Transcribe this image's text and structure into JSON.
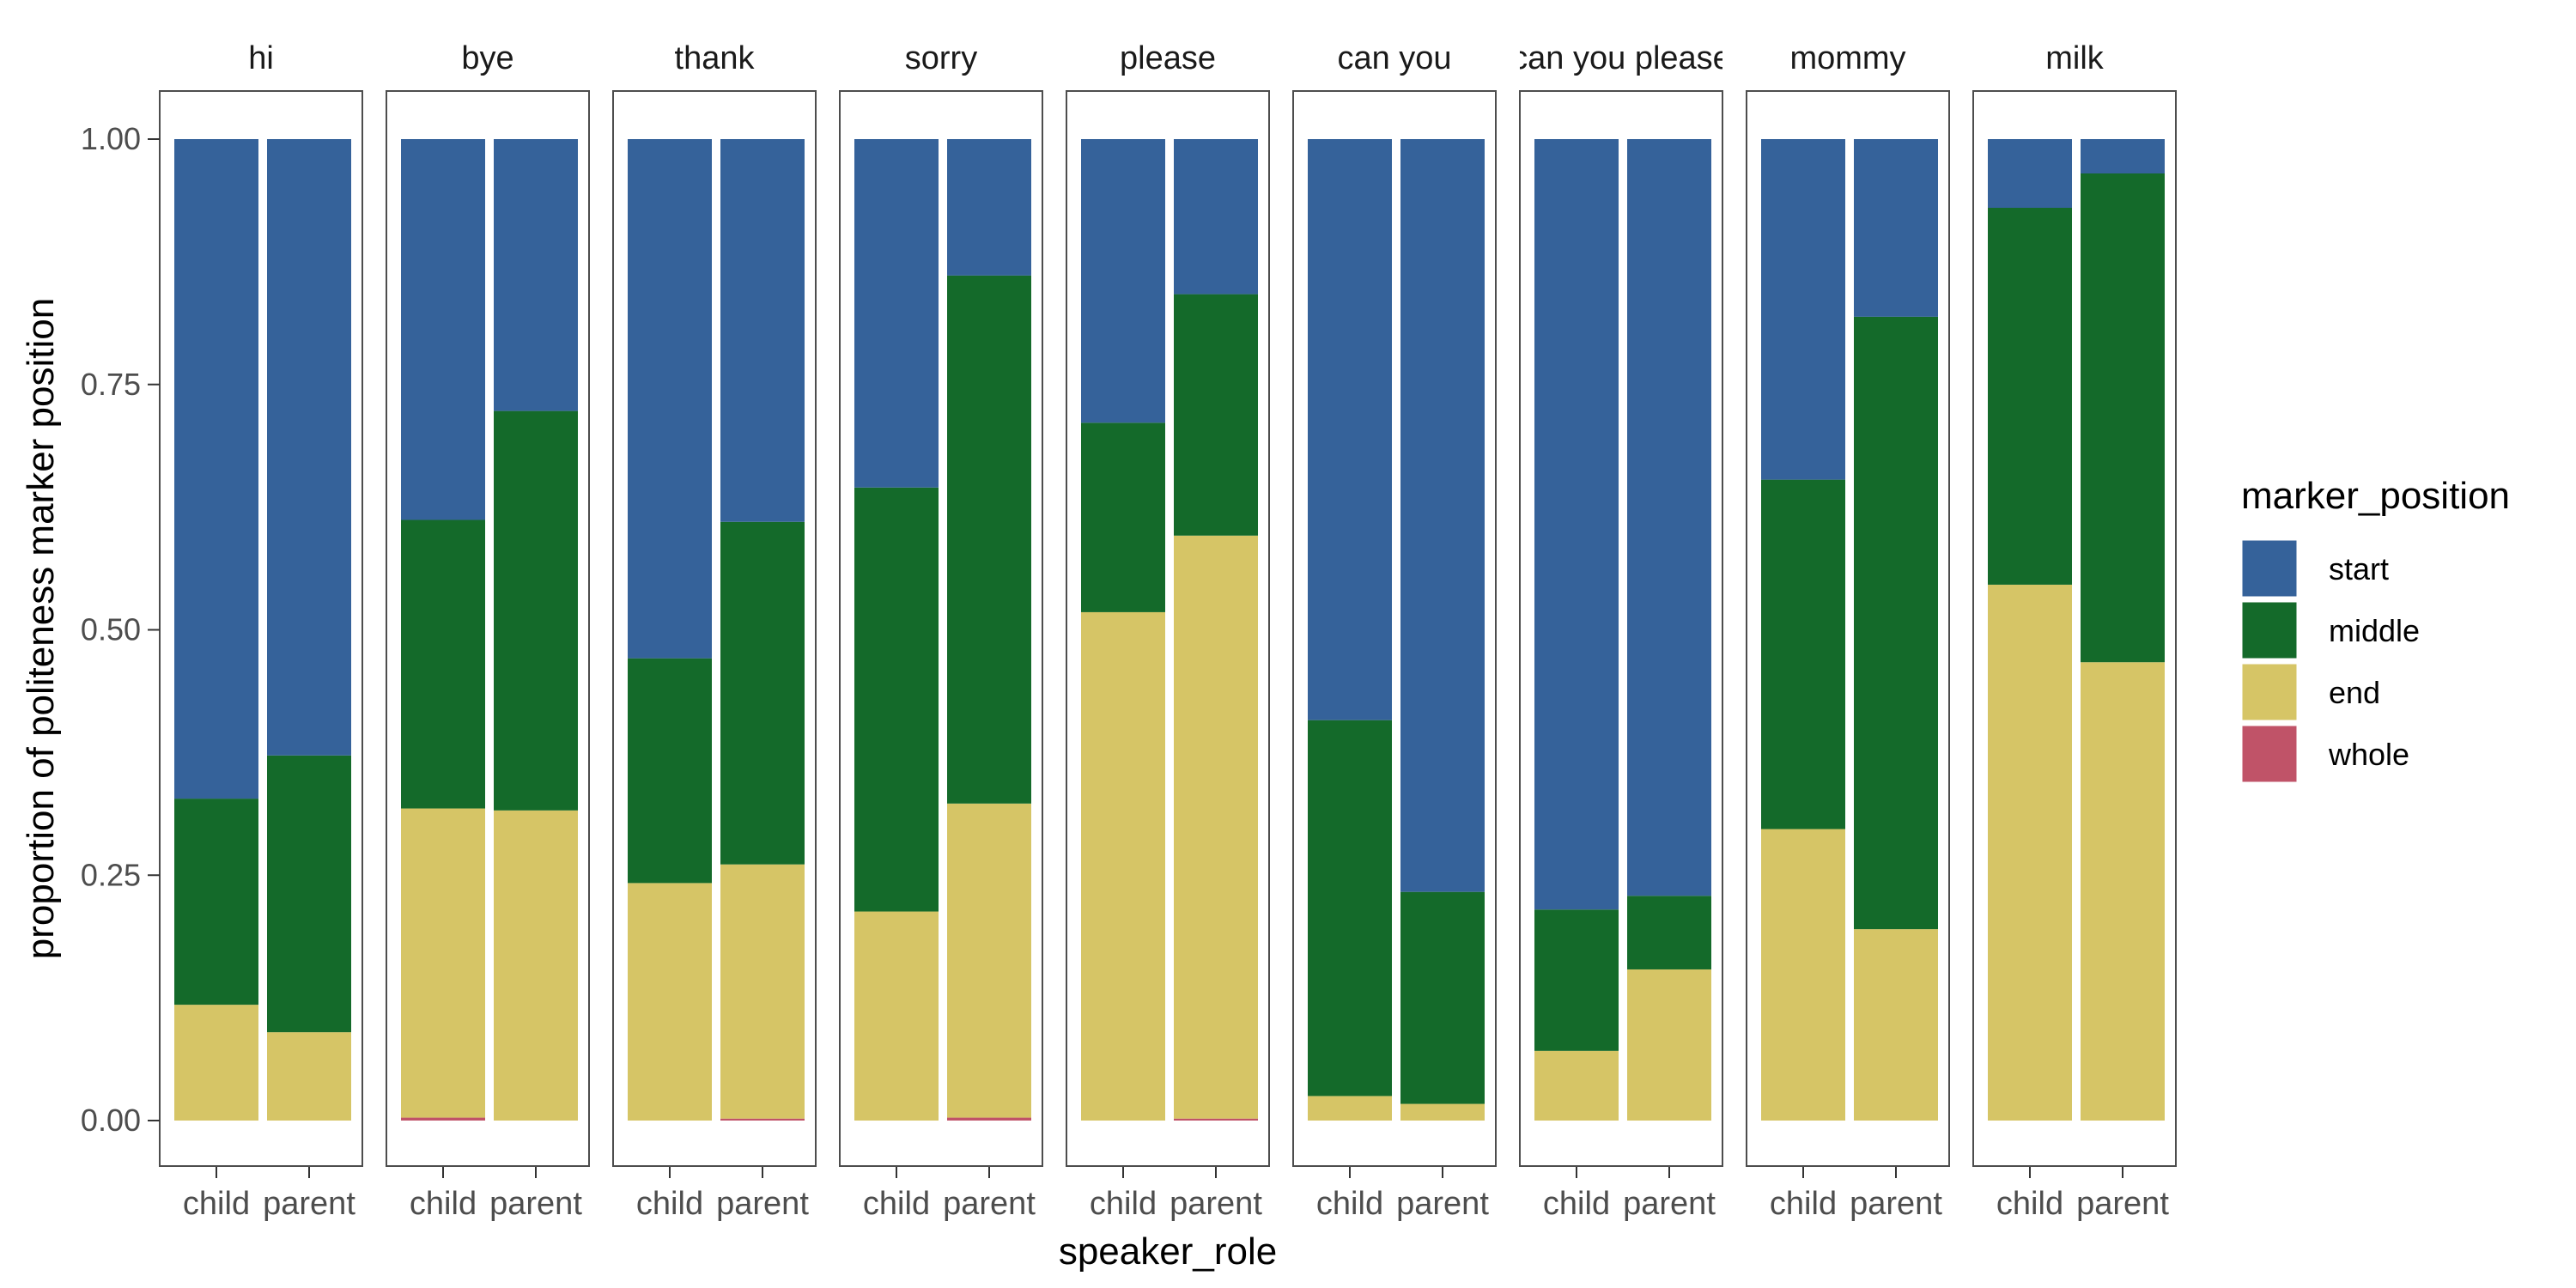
{
  "chart_data": {
    "type": "bar",
    "stacked": true,
    "facets": [
      "hi",
      "bye",
      "thank",
      "sorry",
      "please",
      "can you",
      "can you please",
      "mommy",
      "milk"
    ],
    "categories": [
      "child",
      "parent"
    ],
    "xlabel": "speaker_role",
    "ylabel": "proportion of politeness marker position",
    "ylim": [
      0,
      1
    ],
    "yticks": [
      "0.00",
      "0.25",
      "0.50",
      "0.75",
      "1.00"
    ],
    "legend": {
      "title": "marker_position",
      "position": "right",
      "entries": [
        "start",
        "middle",
        "end",
        "whole"
      ]
    },
    "colors": {
      "start": "#35629A",
      "middle": "#146A2A",
      "end": "#D6C566",
      "whole": "#C05368",
      "panel_border": "#4D4D4D",
      "text": "#000000",
      "tick_text": "#4D4D4D"
    },
    "series": [
      {
        "name": "whole",
        "values": [
          [
            0.0,
            0.0
          ],
          [
            0.003,
            0.0
          ],
          [
            0.0,
            0.002
          ],
          [
            0.0,
            0.003
          ],
          [
            0.0,
            0.002
          ],
          [
            0.0,
            0.0
          ],
          [
            0.0,
            0.0
          ],
          [
            0.0,
            0.0
          ],
          [
            0.0,
            0.0
          ]
        ]
      },
      {
        "name": "end",
        "values": [
          [
            0.118,
            0.09
          ],
          [
            0.315,
            0.316
          ],
          [
            0.242,
            0.259
          ],
          [
            0.213,
            0.32
          ],
          [
            0.518,
            0.594
          ],
          [
            0.025,
            0.017
          ],
          [
            0.071,
            0.154
          ],
          [
            0.297,
            0.195
          ],
          [
            0.546,
            0.467
          ]
        ]
      },
      {
        "name": "middle",
        "values": [
          [
            0.21,
            0.282
          ],
          [
            0.294,
            0.407
          ],
          [
            0.229,
            0.349
          ],
          [
            0.432,
            0.538
          ],
          [
            0.193,
            0.246
          ],
          [
            0.383,
            0.216
          ],
          [
            0.144,
            0.075
          ],
          [
            0.356,
            0.624
          ],
          [
            0.384,
            0.498
          ]
        ]
      },
      {
        "name": "start",
        "values": [
          [
            0.672,
            0.628
          ],
          [
            0.388,
            0.277
          ],
          [
            0.529,
            0.39
          ],
          [
            0.355,
            0.139
          ],
          [
            0.289,
            0.158
          ],
          [
            0.592,
            0.767
          ],
          [
            0.785,
            0.771
          ],
          [
            0.347,
            0.181
          ],
          [
            0.07,
            0.035
          ]
        ]
      }
    ]
  }
}
